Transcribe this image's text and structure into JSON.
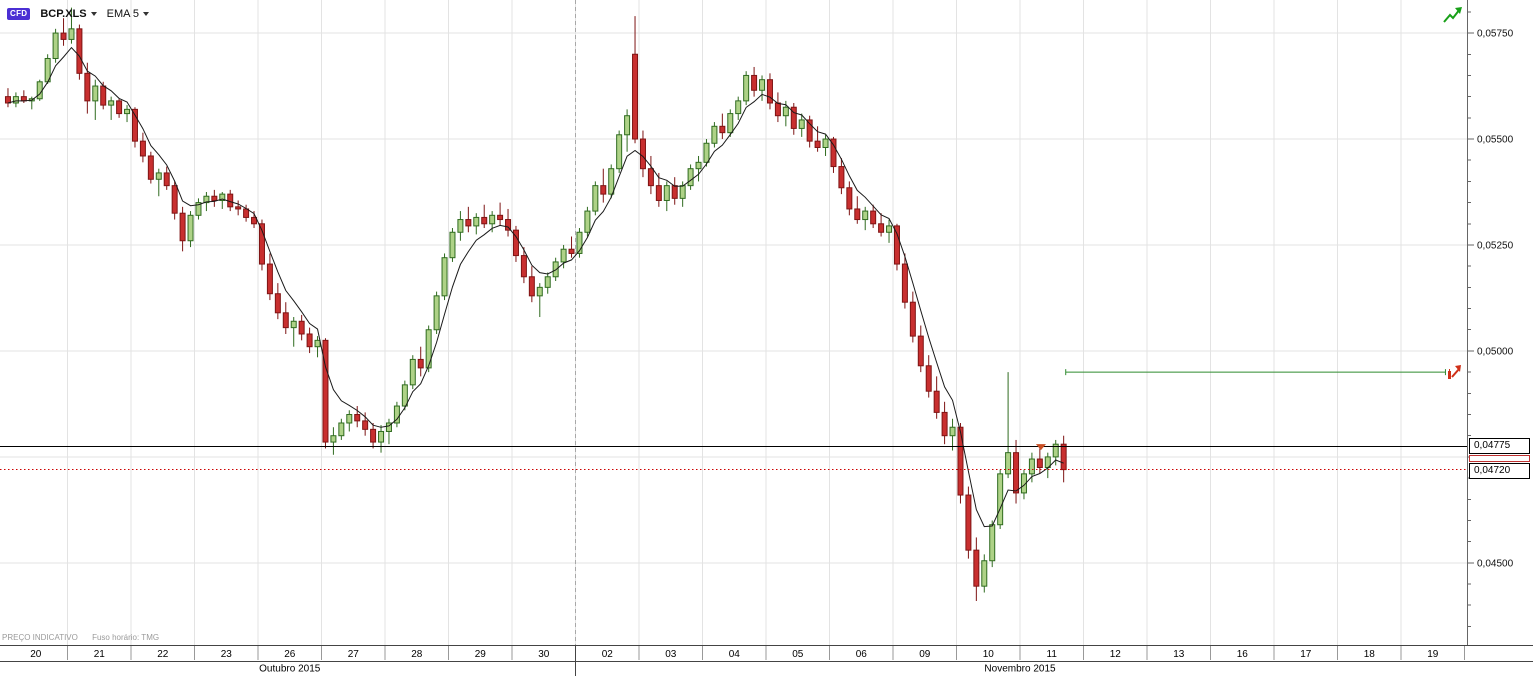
{
  "toolbar": {
    "cfd_badge": "CFD",
    "symbol": "BCP.XLS",
    "indicator": "EMA 5"
  },
  "footer": {
    "indicative": "PREÇO INDICATIVO",
    "timezone": "Fuso horário: TMG"
  },
  "price_boxes": {
    "upper": "0,04775",
    "lower": "0,04720"
  },
  "colors": {
    "candle_up_fill": "#aed287",
    "candle_up_stroke": "#2f6b1f",
    "candle_down_fill": "#c82f2f",
    "candle_down_stroke": "#7e1414",
    "ema_line": "#1a1a1a",
    "grid": "#e3e3e3",
    "black_line": "#000000",
    "red_dotted_line": "#cc0000",
    "green_line": "#2e8b2e",
    "marker": "#c94f24",
    "badge_bg": "#4b2fd4",
    "accent_green": "#18a018"
  },
  "chart_data": {
    "type": "candlestick",
    "title": "BCP.XLS CFD hourly candlestick chart with EMA 5 overlay",
    "symbol": "BCP.XLS",
    "indicator": "EMA 5",
    "ema_period": 5,
    "grid": true,
    "y_axis": {
      "min": 0.04318,
      "max": 0.05828,
      "minor_step": 0.0005,
      "major_step": 0.0025,
      "labels": [
        "0,05750",
        "0,05500",
        "0,05250",
        "0,05000",
        "0,04500"
      ],
      "label_values": [
        0.0575,
        0.055,
        0.0525,
        0.05,
        0.045
      ]
    },
    "x_axis": {
      "day_labels": [
        "20",
        "21",
        "22",
        "23",
        "26",
        "27",
        "28",
        "29",
        "30",
        "02",
        "03",
        "04",
        "05",
        "06",
        "09",
        "10",
        "11",
        "12",
        "13",
        "16",
        "17",
        "18",
        "19"
      ],
      "october_days": 9,
      "month_labels": [
        "Outubro 2015",
        "Novembro 2015"
      ]
    },
    "price_lines": {
      "black_line": 0.04775,
      "red_dotted_line": 0.0472,
      "green_segment": {
        "price": 0.0495,
        "start_day_index": 16.72,
        "end_day_index": 22.7
      }
    },
    "marker": {
      "day_index": 16.33,
      "price": 0.0478
    },
    "candles_per_day": 8,
    "candles": [
      [
        0.056,
        0.0562,
        0.05575,
        0.05585
      ],
      [
        0.05585,
        0.0561,
        0.05575,
        0.056
      ],
      [
        0.056,
        0.05615,
        0.05585,
        0.0559
      ],
      [
        0.0559,
        0.056,
        0.0557,
        0.05595
      ],
      [
        0.05595,
        0.0564,
        0.0559,
        0.05635
      ],
      [
        0.05635,
        0.057,
        0.0563,
        0.0569
      ],
      [
        0.0569,
        0.0576,
        0.0568,
        0.0575
      ],
      [
        0.0575,
        0.05785,
        0.0572,
        0.05735
      ],
      [
        0.05735,
        0.0581,
        0.05725,
        0.0576
      ],
      [
        0.0576,
        0.0577,
        0.0564,
        0.05655
      ],
      [
        0.05655,
        0.0568,
        0.0556,
        0.0559
      ],
      [
        0.0559,
        0.0564,
        0.05545,
        0.05625
      ],
      [
        0.05625,
        0.05635,
        0.0557,
        0.0558
      ],
      [
        0.0558,
        0.056,
        0.05545,
        0.0559
      ],
      [
        0.0559,
        0.05595,
        0.0555,
        0.0556
      ],
      [
        0.0556,
        0.0558,
        0.0554,
        0.0557
      ],
      [
        0.0557,
        0.05575,
        0.0548,
        0.05495
      ],
      [
        0.05495,
        0.05515,
        0.05445,
        0.0546
      ],
      [
        0.0546,
        0.0547,
        0.05395,
        0.05405
      ],
      [
        0.05405,
        0.0543,
        0.05365,
        0.0542
      ],
      [
        0.0542,
        0.05435,
        0.0538,
        0.0539
      ],
      [
        0.0539,
        0.054,
        0.0531,
        0.05325
      ],
      [
        0.05325,
        0.0534,
        0.05235,
        0.0526
      ],
      [
        0.0526,
        0.0533,
        0.05245,
        0.0532
      ],
      [
        0.0532,
        0.0536,
        0.0531,
        0.0535
      ],
      [
        0.0535,
        0.05375,
        0.0533,
        0.05365
      ],
      [
        0.05365,
        0.0538,
        0.0534,
        0.05355
      ],
      [
        0.05355,
        0.05375,
        0.05335,
        0.0537
      ],
      [
        0.0537,
        0.0538,
        0.0533,
        0.0534
      ],
      [
        0.0534,
        0.05355,
        0.0532,
        0.05335
      ],
      [
        0.05335,
        0.05345,
        0.05305,
        0.05315
      ],
      [
        0.05315,
        0.0533,
        0.0529,
        0.053
      ],
      [
        0.053,
        0.0531,
        0.0519,
        0.05205
      ],
      [
        0.05205,
        0.0523,
        0.0512,
        0.05135
      ],
      [
        0.05135,
        0.0516,
        0.05075,
        0.0509
      ],
      [
        0.0509,
        0.05115,
        0.0504,
        0.05055
      ],
      [
        0.05055,
        0.0508,
        0.0501,
        0.0507
      ],
      [
        0.0507,
        0.05085,
        0.05025,
        0.0504
      ],
      [
        0.0504,
        0.05055,
        0.04995,
        0.0501
      ],
      [
        0.0501,
        0.05035,
        0.04985,
        0.05025
      ],
      [
        0.05025,
        0.0503,
        0.0477,
        0.04785
      ],
      [
        0.04785,
        0.0482,
        0.04755,
        0.048
      ],
      [
        0.048,
        0.0484,
        0.0479,
        0.0483
      ],
      [
        0.0483,
        0.0486,
        0.0481,
        0.0485
      ],
      [
        0.0485,
        0.0487,
        0.0482,
        0.04835
      ],
      [
        0.04835,
        0.04855,
        0.048,
        0.04815
      ],
      [
        0.04815,
        0.0483,
        0.0477,
        0.04785
      ],
      [
        0.04785,
        0.04825,
        0.0476,
        0.0481
      ],
      [
        0.0481,
        0.0484,
        0.0478,
        0.0483
      ],
      [
        0.0483,
        0.0488,
        0.0482,
        0.0487
      ],
      [
        0.0487,
        0.0493,
        0.0486,
        0.0492
      ],
      [
        0.0492,
        0.0499,
        0.0491,
        0.0498
      ],
      [
        0.0498,
        0.0501,
        0.0494,
        0.0496
      ],
      [
        0.0496,
        0.0506,
        0.0495,
        0.0505
      ],
      [
        0.0505,
        0.0514,
        0.0504,
        0.0513
      ],
      [
        0.0513,
        0.0523,
        0.0512,
        0.0522
      ],
      [
        0.0522,
        0.0529,
        0.0521,
        0.0528
      ],
      [
        0.0528,
        0.0533,
        0.0526,
        0.0531
      ],
      [
        0.0531,
        0.0534,
        0.0528,
        0.05295
      ],
      [
        0.05295,
        0.05325,
        0.05275,
        0.05315
      ],
      [
        0.05315,
        0.05345,
        0.0529,
        0.053
      ],
      [
        0.053,
        0.0533,
        0.0528,
        0.0532
      ],
      [
        0.0532,
        0.0535,
        0.05295,
        0.0531
      ],
      [
        0.0531,
        0.05335,
        0.0527,
        0.05285
      ],
      [
        0.05285,
        0.05295,
        0.0521,
        0.05225
      ],
      [
        0.05225,
        0.05245,
        0.0516,
        0.05175
      ],
      [
        0.05175,
        0.052,
        0.05115,
        0.0513
      ],
      [
        0.0513,
        0.0516,
        0.0508,
        0.0515
      ],
      [
        0.0515,
        0.05185,
        0.05135,
        0.05175
      ],
      [
        0.05175,
        0.0522,
        0.05165,
        0.0521
      ],
      [
        0.0521,
        0.0525,
        0.05195,
        0.0524
      ],
      [
        0.0524,
        0.0527,
        0.0522,
        0.0523
      ],
      [
        0.0523,
        0.0529,
        0.0522,
        0.0528
      ],
      [
        0.0528,
        0.0534,
        0.0527,
        0.0533
      ],
      [
        0.0533,
        0.054,
        0.0532,
        0.0539
      ],
      [
        0.0539,
        0.0543,
        0.0535,
        0.0537
      ],
      [
        0.0537,
        0.0544,
        0.0536,
        0.0543
      ],
      [
        0.0543,
        0.0552,
        0.0542,
        0.0551
      ],
      [
        0.0551,
        0.0557,
        0.0547,
        0.05555
      ],
      [
        0.057,
        0.0579,
        0.0549,
        0.055
      ],
      [
        0.055,
        0.0552,
        0.0541,
        0.0543
      ],
      [
        0.0543,
        0.0546,
        0.0537,
        0.0539
      ],
      [
        0.0539,
        0.0542,
        0.0534,
        0.05355
      ],
      [
        0.05355,
        0.054,
        0.0533,
        0.0539
      ],
      [
        0.0539,
        0.0541,
        0.05345,
        0.0536
      ],
      [
        0.0536,
        0.054,
        0.0534,
        0.0539
      ],
      [
        0.0539,
        0.0544,
        0.0538,
        0.0543
      ],
      [
        0.0543,
        0.0546,
        0.054,
        0.05445
      ],
      [
        0.05445,
        0.055,
        0.05435,
        0.0549
      ],
      [
        0.0549,
        0.0554,
        0.0548,
        0.0553
      ],
      [
        0.0553,
        0.0556,
        0.055,
        0.05515
      ],
      [
        0.05515,
        0.0557,
        0.05505,
        0.0556
      ],
      [
        0.0556,
        0.056,
        0.05545,
        0.0559
      ],
      [
        0.0559,
        0.0566,
        0.0558,
        0.0565
      ],
      [
        0.0565,
        0.0567,
        0.056,
        0.05615
      ],
      [
        0.05615,
        0.0565,
        0.0559,
        0.0564
      ],
      [
        0.0564,
        0.05655,
        0.0557,
        0.05585
      ],
      [
        0.05585,
        0.0561,
        0.0554,
        0.05555
      ],
      [
        0.05555,
        0.0559,
        0.0553,
        0.05575
      ],
      [
        0.05575,
        0.05585,
        0.0551,
        0.05525
      ],
      [
        0.05525,
        0.0556,
        0.05505,
        0.05545
      ],
      [
        0.05545,
        0.05555,
        0.0548,
        0.05495
      ],
      [
        0.05495,
        0.0553,
        0.0547,
        0.0548
      ],
      [
        0.0548,
        0.0551,
        0.0546,
        0.055
      ],
      [
        0.055,
        0.05505,
        0.0542,
        0.05435
      ],
      [
        0.05435,
        0.05455,
        0.0537,
        0.05385
      ],
      [
        0.05385,
        0.054,
        0.0532,
        0.05335
      ],
      [
        0.05335,
        0.05365,
        0.053,
        0.0531
      ],
      [
        0.0531,
        0.0534,
        0.05285,
        0.0533
      ],
      [
        0.0533,
        0.05345,
        0.0529,
        0.053
      ],
      [
        0.053,
        0.05325,
        0.0527,
        0.0528
      ],
      [
        0.0528,
        0.0531,
        0.05255,
        0.05295
      ],
      [
        0.05295,
        0.053,
        0.0519,
        0.05205
      ],
      [
        0.05205,
        0.0523,
        0.051,
        0.05115
      ],
      [
        0.05115,
        0.0514,
        0.0502,
        0.05035
      ],
      [
        0.05035,
        0.0506,
        0.0495,
        0.04965
      ],
      [
        0.04965,
        0.0499,
        0.0489,
        0.04905
      ],
      [
        0.04905,
        0.0494,
        0.0484,
        0.04855
      ],
      [
        0.04855,
        0.0488,
        0.0478,
        0.048
      ],
      [
        0.048,
        0.0484,
        0.04765,
        0.0482
      ],
      [
        0.0482,
        0.0483,
        0.0464,
        0.0466
      ],
      [
        0.0466,
        0.0468,
        0.0451,
        0.0453
      ],
      [
        0.0453,
        0.0456,
        0.0441,
        0.04445
      ],
      [
        0.04445,
        0.0452,
        0.0443,
        0.04505
      ],
      [
        0.04505,
        0.046,
        0.0449,
        0.0459
      ],
      [
        0.0459,
        0.0472,
        0.0458,
        0.0471
      ],
      [
        0.0471,
        0.0495,
        0.047,
        0.0476
      ],
      [
        0.0476,
        0.0479,
        0.0464,
        0.04665
      ],
      [
        0.04665,
        0.0472,
        0.0465,
        0.0471
      ],
      [
        0.0471,
        0.0476,
        0.0469,
        0.04745
      ],
      [
        0.04745,
        0.0477,
        0.0471,
        0.04725
      ],
      [
        0.04725,
        0.0476,
        0.047,
        0.0475
      ],
      [
        0.0475,
        0.0479,
        0.0473,
        0.0478
      ],
      [
        0.0478,
        0.048,
        0.0469,
        0.0472
      ]
    ]
  }
}
